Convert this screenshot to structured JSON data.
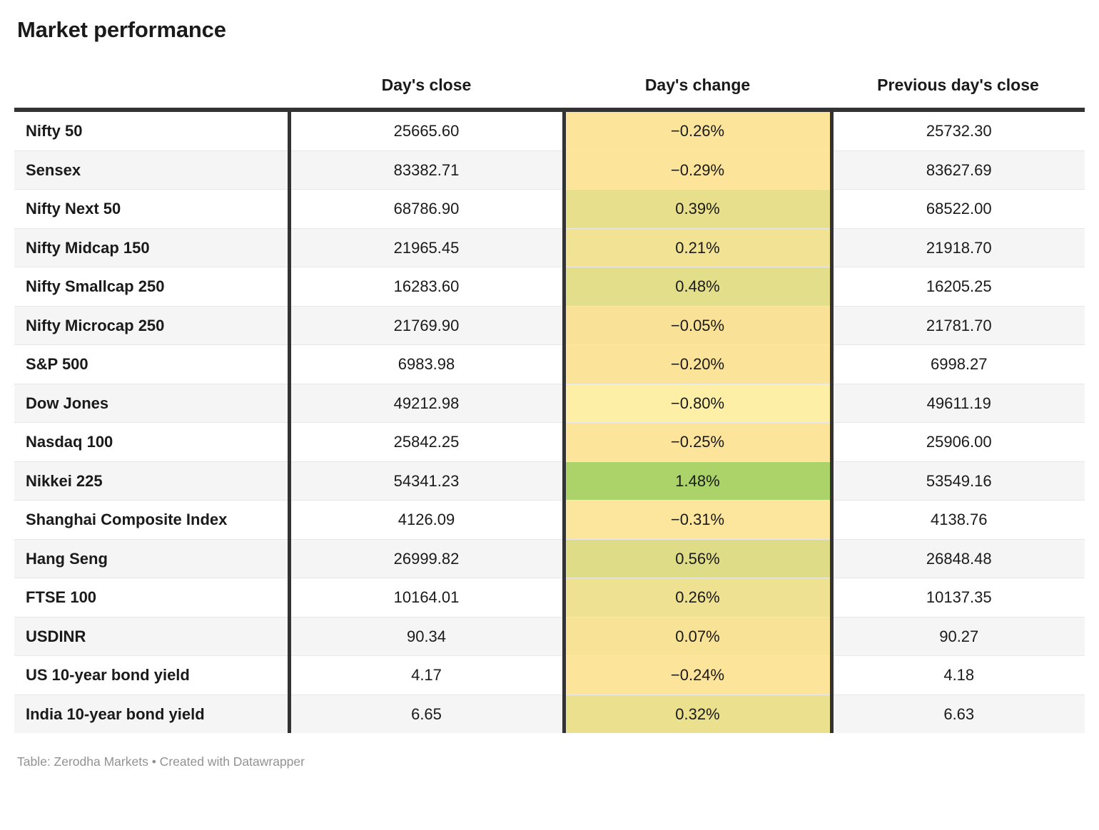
{
  "title": "Market performance",
  "colors": {
    "border_dark": "#333333",
    "row_alt": "#f5f5f5",
    "positive_max": "#ABD369",
    "negative_min": "#FDF0A6"
  },
  "chart_data": {
    "type": "table",
    "title": "Market performance",
    "headers": {
      "close": "Day's close",
      "change": "Day's change",
      "prev": "Previous day's close"
    },
    "rows": [
      {
        "label": "Nifty 50",
        "close": "25665.60",
        "change": "−0.26%",
        "change_value": -0.26,
        "change_color": "#FCE49A",
        "prev": "25732.30"
      },
      {
        "label": "Sensex",
        "close": "83382.71",
        "change": "−0.29%",
        "change_value": -0.29,
        "change_color": "#FCE49A",
        "prev": "83627.69"
      },
      {
        "label": "Nifty Next 50",
        "close": "68786.90",
        "change": "0.39%",
        "change_value": 0.39,
        "change_color": "#E7DF8B",
        "prev": "68522.00"
      },
      {
        "label": "Nifty Midcap 150",
        "close": "21965.45",
        "change": "0.21%",
        "change_value": 0.21,
        "change_color": "#F2E294",
        "prev": "21918.70"
      },
      {
        "label": "Nifty Smallcap 250",
        "close": "16283.60",
        "change": "0.48%",
        "change_value": 0.48,
        "change_color": "#E3DE89",
        "prev": "16205.25"
      },
      {
        "label": "Nifty Microcap 250",
        "close": "21769.90",
        "change": "−0.05%",
        "change_value": -0.05,
        "change_color": "#F9E297",
        "prev": "21781.70"
      },
      {
        "label": "S&P 500",
        "close": "6983.98",
        "change": "−0.20%",
        "change_value": -0.2,
        "change_color": "#FBE399",
        "prev": "6998.27"
      },
      {
        "label": "Dow Jones",
        "close": "49212.98",
        "change": "−0.80%",
        "change_value": -0.8,
        "change_color": "#FDF0A6",
        "prev": "49611.19"
      },
      {
        "label": "Nasdaq 100",
        "close": "25842.25",
        "change": "−0.25%",
        "change_value": -0.25,
        "change_color": "#FCE49A",
        "prev": "25906.00"
      },
      {
        "label": "Nikkei 225",
        "close": "54341.23",
        "change": "1.48%",
        "change_value": 1.48,
        "change_color": "#ABD369",
        "prev": "53549.16"
      },
      {
        "label": "Shanghai Composite Index",
        "close": "4126.09",
        "change": "−0.31%",
        "change_value": -0.31,
        "change_color": "#FCE59C",
        "prev": "4138.76"
      },
      {
        "label": "Hang Seng",
        "close": "26999.82",
        "change": "0.56%",
        "change_value": 0.56,
        "change_color": "#DFDC88",
        "prev": "26848.48"
      },
      {
        "label": "FTSE 100",
        "close": "10164.01",
        "change": "0.26%",
        "change_value": 0.26,
        "change_color": "#EFE192",
        "prev": "10137.35"
      },
      {
        "label": "USDINR",
        "close": "90.34",
        "change": "0.07%",
        "change_value": 0.07,
        "change_color": "#F8E295",
        "prev": "90.27"
      },
      {
        "label": "US 10-year bond yield",
        "close": "4.17",
        "change": "−0.24%",
        "change_value": -0.24,
        "change_color": "#FCE49A",
        "prev": "4.18"
      },
      {
        "label": "India 10-year bond yield",
        "close": "6.65",
        "change": "0.32%",
        "change_value": 0.32,
        "change_color": "#EBE08E",
        "prev": "6.63"
      }
    ]
  },
  "footer": {
    "text": "Table: Zerodha Markets • Created with Datawrapper"
  }
}
